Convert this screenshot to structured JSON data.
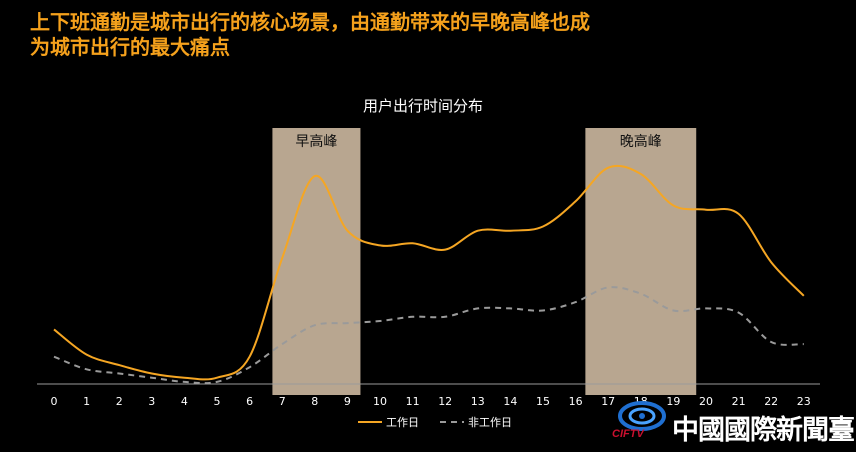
{
  "headline": {
    "line1": "上下班通勤是城市出行的核心场景，由通勤带来的早晚高峰也成",
    "line2": "为城市出行的最大痛点"
  },
  "logo": {
    "text": "中國國際新聞臺",
    "sub": "CIFTV"
  },
  "colors": {
    "background": "#000000",
    "headline": "#f5a11c",
    "workday": "#f5a623",
    "holiday": "#9a9a9a",
    "peak_band": "#b8a690",
    "text": "#ffffff"
  },
  "chart_data": {
    "type": "line",
    "title": "用户出行时间分布",
    "xlabel": "",
    "ylabel": "",
    "categories": [
      "0",
      "1",
      "2",
      "3",
      "4",
      "5",
      "6",
      "7",
      "8",
      "9",
      "10",
      "11",
      "12",
      "13",
      "14",
      "15",
      "16",
      "17",
      "18",
      "19",
      "20",
      "21",
      "22",
      "23"
    ],
    "ylim": [
      0,
      100
    ],
    "grid": false,
    "legend_position": "bottom",
    "series": [
      {
        "name": "工作日",
        "style": "solid",
        "values": [
          26,
          14,
          9,
          5,
          3,
          3,
          13,
          60,
          99,
          73,
          66,
          67,
          64,
          73,
          73,
          75,
          87,
          103,
          100,
          85,
          83,
          81,
          58,
          42
        ]
      },
      {
        "name": "非工作日",
        "style": "dashed",
        "values": [
          13,
          7,
          5,
          3,
          1,
          1,
          8,
          19,
          28,
          29,
          30,
          32,
          32,
          36,
          36,
          35,
          39,
          46,
          43,
          35,
          36,
          34,
          20,
          19
        ]
      }
    ],
    "highlight_bands": [
      {
        "label": "早高峰",
        "from": 6.7,
        "to": 9.4
      },
      {
        "label": "晚高峰",
        "from": 16.3,
        "to": 19.7
      }
    ]
  }
}
